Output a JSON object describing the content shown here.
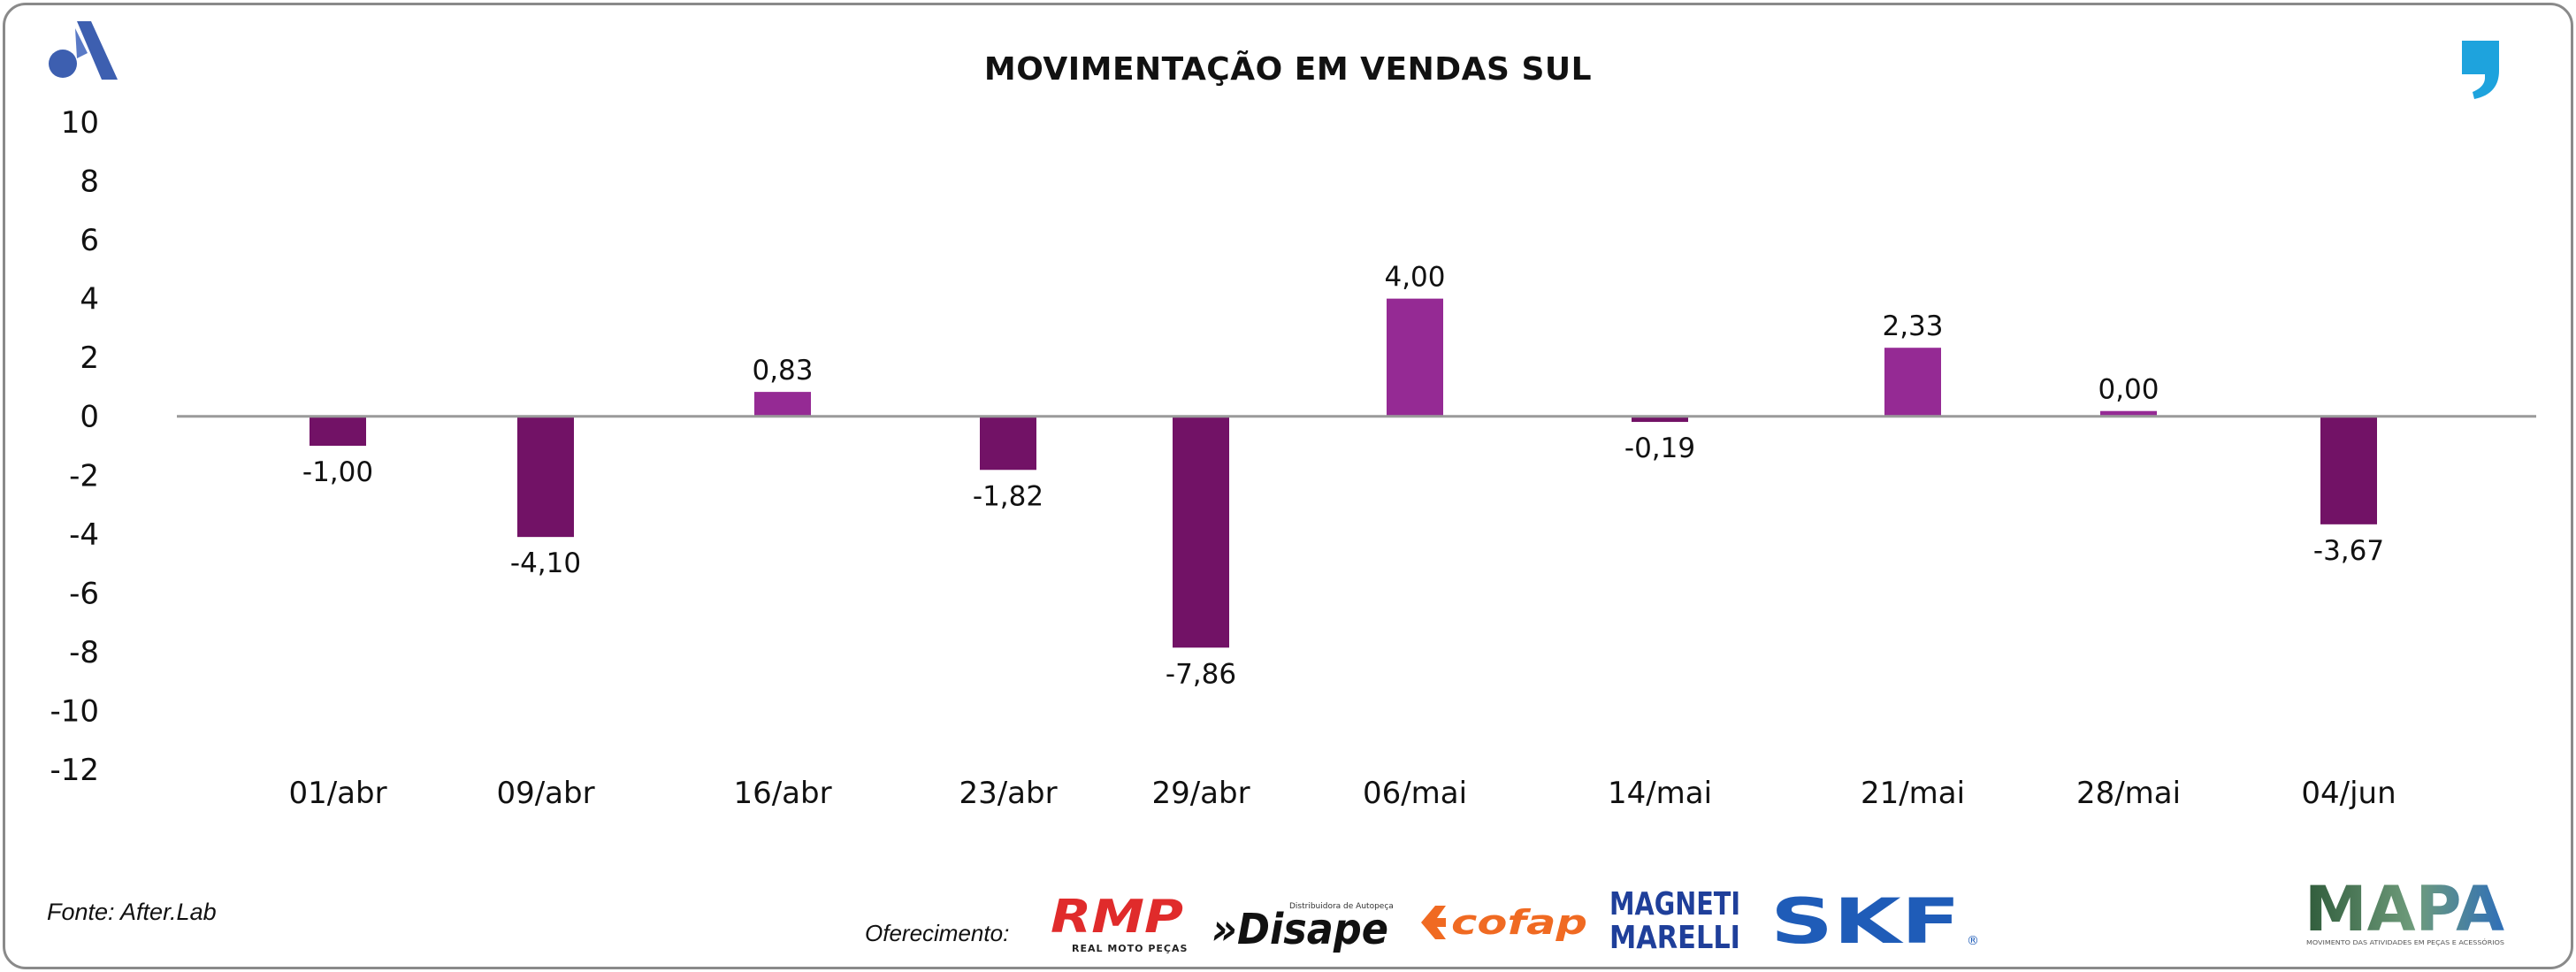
{
  "header": {
    "title": "MOVIMENTAÇÃO EM VENDAS SUL"
  },
  "chart_data": {
    "type": "bar",
    "title": "MOVIMENTAÇÃO EM VENDAS SUL",
    "categories": [
      "01/abr",
      "09/abr",
      "16/abr",
      "23/abr",
      "29/abr",
      "06/mai",
      "14/mai",
      "21/mai",
      "28/mai",
      "04/jun"
    ],
    "values": [
      -1.0,
      -4.1,
      0.83,
      -1.82,
      -7.86,
      4.0,
      -0.19,
      2.33,
      0.0,
      -3.67
    ],
    "value_labels": [
      "-1,00",
      "-4,10",
      "0,83",
      "-1,82",
      "-7,86",
      "4,00",
      "-0,19",
      "2,33",
      "0,00",
      "-3,67"
    ],
    "ylim": [
      -12,
      10
    ],
    "yticks": [
      10,
      8,
      6,
      4,
      2,
      0,
      -2,
      -4,
      -6,
      -8,
      -10,
      -12
    ],
    "xlabel": "",
    "ylabel": "",
    "grid": false,
    "colors": {
      "positive": "#952a94",
      "negative": "#721266",
      "axis": "#9a9a9a"
    }
  },
  "footer": {
    "source": "Fonte: After.Lab",
    "sponsor_label": "Oferecimento:",
    "sponsors": {
      "rmp": {
        "name": "RMP",
        "tagline": "REAL MOTO PEÇAS"
      },
      "disape": {
        "name": "»Disape",
        "tagline": "Distribuidora de Autopeças"
      },
      "cofap": {
        "name": "cofap"
      },
      "magneti": {
        "line1": "MAGNETI",
        "line2": "MARELLI"
      },
      "skf": {
        "name": "SKF",
        "mark": "®"
      },
      "mapa": {
        "name": "MAPA",
        "tagline": "MOVIMENTO DAS ATIVIDADES EM PEÇAS E ACESSÓRIOS"
      }
    }
  },
  "brand": {
    "accent_blue": "#3d5fb0",
    "accent_cyan": "#1ea3dd"
  }
}
